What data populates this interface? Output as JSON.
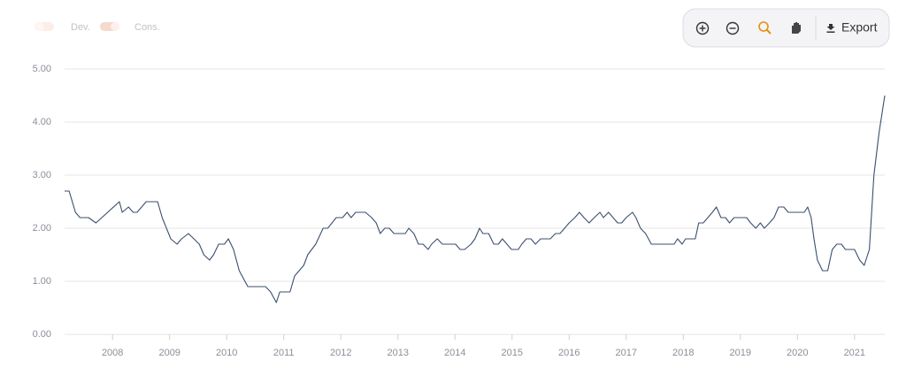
{
  "chart_data": {
    "type": "line",
    "toggles": [
      "Dev.",
      "Cons."
    ],
    "toolbar": {
      "export": "Export"
    },
    "color": "#3b4f6e",
    "grid": true,
    "xlim": [
      2007.16,
      2021.53
    ],
    "xticks": [
      2008,
      2009,
      2010,
      2011,
      2012,
      2013,
      2014,
      2015,
      2016,
      2017,
      2018,
      2019,
      2020,
      2021
    ],
    "ylim": [
      0,
      5
    ],
    "yticks": [
      {
        "value": 0,
        "label": "0.00"
      },
      {
        "value": 1,
        "label": "1.00"
      },
      {
        "value": 2,
        "label": "2.00"
      },
      {
        "value": 3,
        "label": "3.00"
      },
      {
        "value": 4,
        "label": "4.00"
      },
      {
        "value": 5,
        "label": "5.00"
      }
    ],
    "x": [
      2007.16,
      2007.24,
      2007.35,
      2007.43,
      2007.58,
      2007.71,
      2008.12,
      2008.17,
      2008.28,
      2008.36,
      2008.43,
      2008.59,
      2008.79,
      2008.87,
      2009.02,
      2009.13,
      2009.21,
      2009.33,
      2009.52,
      2009.6,
      2009.7,
      2009.77,
      2009.86,
      2009.96,
      2010.03,
      2010.12,
      2010.22,
      2010.37,
      2010.68,
      2010.77,
      2010.87,
      2010.93,
      2011.11,
      2011.19,
      2011.35,
      2011.42,
      2011.56,
      2011.69,
      2011.77,
      2011.92,
      2012.03,
      2012.11,
      2012.18,
      2012.26,
      2012.43,
      2012.54,
      2012.62,
      2012.69,
      2012.77,
      2012.85,
      2012.93,
      2013.13,
      2013.19,
      2013.28,
      2013.36,
      2013.44,
      2013.53,
      2013.59,
      2013.69,
      2013.78,
      2014.01,
      2014.09,
      2014.17,
      2014.28,
      2014.35,
      2014.43,
      2014.49,
      2014.59,
      2014.68,
      2014.76,
      2014.83,
      2014.91,
      2014.99,
      2015.11,
      2015.17,
      2015.25,
      2015.33,
      2015.41,
      2015.5,
      2015.67,
      2015.76,
      2015.84,
      2015.92,
      2016.0,
      2016.1,
      2016.18,
      2016.26,
      2016.35,
      2016.44,
      2016.54,
      2016.6,
      2016.69,
      2016.77,
      2016.85,
      2016.92,
      2017.0,
      2017.11,
      2017.17,
      2017.25,
      2017.34,
      2017.44,
      2017.84,
      2017.9,
      2017.98,
      2018.04,
      2018.21,
      2018.27,
      2018.35,
      2018.43,
      2018.51,
      2018.58,
      2018.66,
      2018.74,
      2018.81,
      2018.89,
      2019.11,
      2019.18,
      2019.27,
      2019.35,
      2019.42,
      2019.51,
      2019.59,
      2019.67,
      2019.76,
      2019.84,
      2020.12,
      2020.18,
      2020.24,
      2020.29,
      2020.35,
      2020.44,
      2020.53,
      2020.61,
      2020.69,
      2020.77,
      2020.84,
      2021.0,
      2021.09,
      2021.17,
      2021.26,
      2021.34,
      2021.43,
      2021.53
    ],
    "values": [
      2.7,
      2.7,
      2.3,
      2.2,
      2.2,
      2.1,
      2.5,
      2.3,
      2.4,
      2.3,
      2.3,
      2.5,
      2.5,
      2.2,
      1.8,
      1.7,
      1.8,
      1.9,
      1.7,
      1.5,
      1.4,
      1.5,
      1.7,
      1.7,
      1.8,
      1.6,
      1.2,
      0.9,
      0.9,
      0.8,
      0.6,
      0.8,
      0.8,
      1.1,
      1.3,
      1.5,
      1.7,
      2.0,
      2.0,
      2.2,
      2.2,
      2.3,
      2.2,
      2.3,
      2.3,
      2.2,
      2.1,
      1.9,
      2.0,
      2.0,
      1.9,
      1.9,
      2.0,
      1.9,
      1.7,
      1.7,
      1.6,
      1.7,
      1.8,
      1.7,
      1.7,
      1.6,
      1.6,
      1.7,
      1.8,
      2.0,
      1.9,
      1.9,
      1.7,
      1.7,
      1.8,
      1.7,
      1.6,
      1.6,
      1.7,
      1.8,
      1.8,
      1.7,
      1.8,
      1.8,
      1.9,
      1.9,
      2.0,
      2.1,
      2.2,
      2.3,
      2.2,
      2.1,
      2.2,
      2.3,
      2.2,
      2.3,
      2.2,
      2.1,
      2.1,
      2.2,
      2.3,
      2.2,
      2.0,
      1.9,
      1.7,
      1.7,
      1.8,
      1.7,
      1.8,
      1.8,
      2.1,
      2.1,
      2.2,
      2.3,
      2.4,
      2.2,
      2.2,
      2.1,
      2.2,
      2.2,
      2.1,
      2.0,
      2.1,
      2.0,
      2.1,
      2.2,
      2.4,
      2.4,
      2.3,
      2.3,
      2.4,
      2.2,
      1.8,
      1.4,
      1.2,
      1.2,
      1.6,
      1.7,
      1.7,
      1.6,
      1.6,
      1.4,
      1.3,
      1.6,
      3.0,
      3.8,
      4.5
    ]
  }
}
